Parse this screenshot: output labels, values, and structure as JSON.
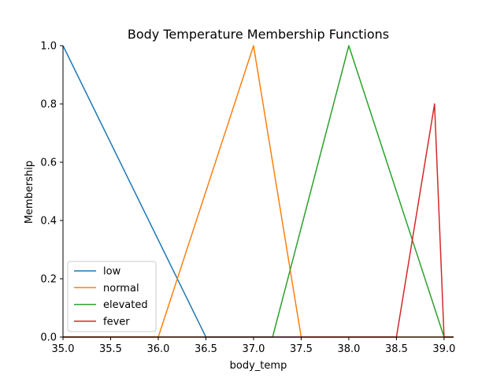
{
  "chart_data": {
    "type": "line",
    "title": "Body Temperature Membership Functions",
    "xlabel": "body_temp",
    "ylabel": "Membership",
    "xlim": [
      35.0,
      39.1
    ],
    "ylim": [
      0.0,
      1.0
    ],
    "xticks": [
      35.0,
      35.5,
      36.0,
      36.5,
      37.0,
      37.5,
      38.0,
      38.5,
      39.0
    ],
    "xtick_labels": [
      "35.0",
      "35.5",
      "36.0",
      "36.5",
      "37.0",
      "37.5",
      "38.0",
      "38.5",
      "39.0"
    ],
    "yticks": [
      0.0,
      0.2,
      0.4,
      0.6,
      0.8,
      1.0
    ],
    "ytick_labels": [
      "0.0",
      "0.2",
      "0.4",
      "0.6",
      "0.8",
      "1.0"
    ],
    "grid": false,
    "legend_position": "lower-left",
    "series": [
      {
        "name": "low",
        "color": "#1f77b4",
        "x": [
          35.0,
          36.5,
          39.1
        ],
        "y": [
          1.0,
          0.0,
          0.0
        ]
      },
      {
        "name": "normal",
        "color": "#ff7f0e",
        "x": [
          35.0,
          36.0,
          37.0,
          37.5,
          39.1
        ],
        "y": [
          0.0,
          0.0,
          1.0,
          0.0,
          0.0
        ]
      },
      {
        "name": "elevated",
        "color": "#2ca02c",
        "x": [
          35.0,
          37.2,
          38.0,
          39.0,
          39.1
        ],
        "y": [
          0.0,
          0.0,
          1.0,
          0.0,
          0.0
        ]
      },
      {
        "name": "fever",
        "color": "#d62728",
        "x": [
          35.0,
          38.5,
          38.9,
          39.0,
          39.1
        ],
        "y": [
          0.0,
          0.0,
          0.8,
          0.0,
          0.0
        ]
      }
    ]
  }
}
